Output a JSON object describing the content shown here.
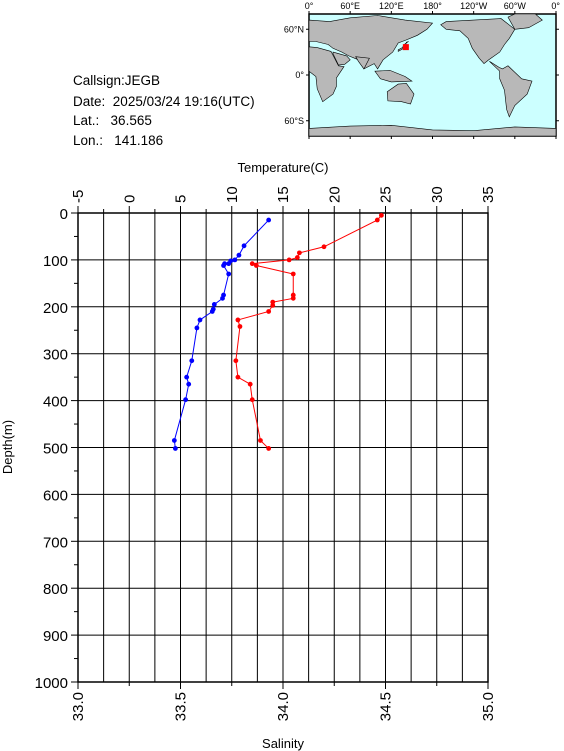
{
  "info": {
    "callsign_label": "Callsign:",
    "callsign": "JEGB",
    "date_label": "Date:",
    "date": "2025/03/24 19:16(UTC)",
    "lat_label": "Lat.:",
    "lat": "36.565",
    "lon_label": "Lon.:",
    "lon": "141.186"
  },
  "map": {
    "top_labels": [
      "0°",
      "60°E",
      "120°E",
      "180°",
      "120°W",
      "60°W",
      "0°"
    ],
    "right_labels": [
      "60°N",
      "0°",
      "60°S"
    ],
    "ocean_color": "#ccffff",
    "land_color": "#b8b8b8",
    "marker_color": "#ff0000",
    "station_lon": 141.186,
    "station_lat": 36.565
  },
  "chart_data": {
    "type": "line",
    "y": {
      "label": "Depth(m)",
      "range": [
        0,
        1000
      ],
      "inverted": true,
      "ticks": [
        0,
        100,
        200,
        300,
        400,
        500,
        600,
        700,
        800,
        900,
        1000
      ]
    },
    "x_top": {
      "label": "Temperature(C)",
      "range": [
        -5,
        35
      ],
      "ticks": [
        -5,
        0,
        5,
        10,
        15,
        20,
        25,
        30,
        35
      ]
    },
    "x_bottom": {
      "label": "Salinity",
      "range": [
        33.0,
        35.0
      ],
      "ticks": [
        "33.0",
        "33.5",
        "34.0",
        "34.5",
        "35.0"
      ]
    },
    "grid": true,
    "series": [
      {
        "axis": "temperature",
        "color": "#0000ff",
        "points": [
          [
            13.6,
            15
          ],
          [
            11.2,
            70
          ],
          [
            10.7,
            90
          ],
          [
            10.3,
            100
          ],
          [
            9.9,
            102
          ],
          [
            9.7,
            108
          ],
          [
            9.3,
            108
          ],
          [
            9.2,
            112
          ],
          [
            9.7,
            130
          ],
          [
            9.2,
            175
          ],
          [
            9.1,
            182
          ],
          [
            8.3,
            195
          ],
          [
            8.2,
            205
          ],
          [
            8.1,
            210
          ],
          [
            6.9,
            228
          ],
          [
            6.6,
            245
          ],
          [
            6.1,
            315
          ],
          [
            5.6,
            350
          ],
          [
            5.8,
            365
          ],
          [
            5.5,
            398
          ],
          [
            4.4,
            485
          ],
          [
            4.5,
            502
          ]
        ]
      },
      {
        "axis": "salinity",
        "color": "#ff0000",
        "points": [
          [
            34.48,
            5
          ],
          [
            34.46,
            15
          ],
          [
            34.2,
            72
          ],
          [
            34.08,
            85
          ],
          [
            34.07,
            95
          ],
          [
            34.03,
            100
          ],
          [
            33.85,
            108
          ],
          [
            33.87,
            112
          ],
          [
            34.05,
            130
          ],
          [
            34.05,
            175
          ],
          [
            34.05,
            182
          ],
          [
            33.95,
            190
          ],
          [
            33.95,
            197
          ],
          [
            33.93,
            210
          ],
          [
            33.78,
            228
          ],
          [
            33.79,
            242
          ],
          [
            33.77,
            315
          ],
          [
            33.78,
            350
          ],
          [
            33.84,
            365
          ],
          [
            33.85,
            398
          ],
          [
            33.89,
            485
          ],
          [
            33.93,
            502
          ]
        ]
      }
    ]
  }
}
